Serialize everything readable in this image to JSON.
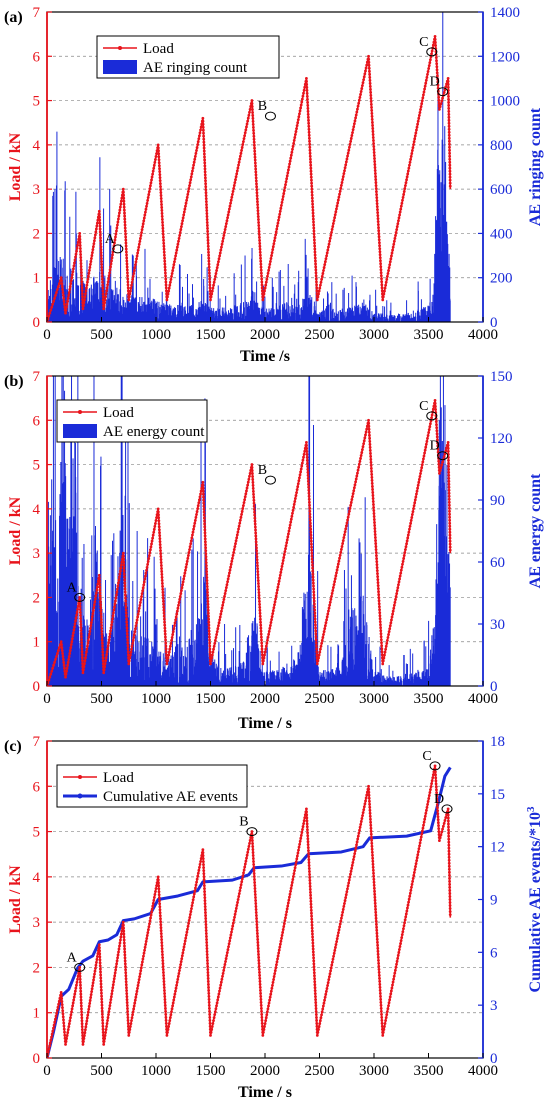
{
  "chart_data": [
    {
      "panel": "(a)",
      "type": "line+bar",
      "xlabel": "Time /s",
      "ylabel_left": "Load / kN",
      "ylabel_right": "AE ringing count",
      "xlim": [
        0,
        4000
      ],
      "ylim_left": [
        0,
        7
      ],
      "ylim_right": [
        0,
        1400
      ],
      "x_ticks": [
        "0",
        "500",
        "1000",
        "1500",
        "2000",
        "2500",
        "3000",
        "3500",
        "4000"
      ],
      "y_left_ticks": [
        "0",
        "1",
        "2",
        "3",
        "4",
        "5",
        "6",
        "7"
      ],
      "y_right_ticks": [
        "0",
        "200",
        "400",
        "600",
        "800",
        "1000",
        "1200",
        "1400"
      ],
      "legend": [
        "Load",
        "AE ringing count"
      ],
      "legend_position": "top-left",
      "grid": "horizontal dashed",
      "load_points": [
        [
          0,
          0
        ],
        [
          130,
          1.0
        ],
        [
          170,
          0.2
        ],
        [
          300,
          2.0
        ],
        [
          330,
          0.3
        ],
        [
          480,
          2.5
        ],
        [
          520,
          0.3
        ],
        [
          700,
          3.0
        ],
        [
          750,
          0.5
        ],
        [
          1020,
          4.0
        ],
        [
          1100,
          0.5
        ],
        [
          1430,
          4.6
        ],
        [
          1500,
          0.5
        ],
        [
          1880,
          5.0
        ],
        [
          1980,
          0.5
        ],
        [
          2380,
          5.5
        ],
        [
          2480,
          0.5
        ],
        [
          2950,
          6.0
        ],
        [
          3080,
          0.5
        ],
        [
          3560,
          6.45
        ],
        [
          3600,
          4.8
        ],
        [
          3680,
          5.5
        ],
        [
          3700,
          3.0
        ]
      ],
      "ae_profile": [
        [
          0,
          150
        ],
        [
          100,
          300
        ],
        [
          200,
          280
        ],
        [
          300,
          220
        ],
        [
          400,
          180
        ],
        [
          500,
          260
        ],
        [
          600,
          180
        ],
        [
          700,
          150
        ],
        [
          800,
          120
        ],
        [
          900,
          110
        ],
        [
          1000,
          110
        ],
        [
          1100,
          80
        ],
        [
          1200,
          90
        ],
        [
          1300,
          70
        ],
        [
          1400,
          110
        ],
        [
          1500,
          70
        ],
        [
          1600,
          70
        ],
        [
          1700,
          70
        ],
        [
          1800,
          90
        ],
        [
          1900,
          150
        ],
        [
          2000,
          60
        ],
        [
          2100,
          70
        ],
        [
          2200,
          90
        ],
        [
          2300,
          70
        ],
        [
          2400,
          150
        ],
        [
          2500,
          50
        ],
        [
          2600,
          60
        ],
        [
          2700,
          60
        ],
        [
          2800,
          70
        ],
        [
          2900,
          90
        ],
        [
          3000,
          50
        ],
        [
          3100,
          40
        ],
        [
          3200,
          40
        ],
        [
          3300,
          40
        ],
        [
          3400,
          60
        ],
        [
          3500,
          80
        ],
        [
          3550,
          150
        ],
        [
          3580,
          900
        ],
        [
          3600,
          1300
        ],
        [
          3620,
          1100
        ],
        [
          3650,
          900
        ],
        [
          3690,
          300
        ]
      ],
      "annotations": [
        {
          "label": "A",
          "x": 650,
          "y": 1.65
        },
        {
          "label": "B",
          "x": 2050,
          "y": 4.65
        },
        {
          "label": "C",
          "x": 3530,
          "y": 6.1
        },
        {
          "label": "D",
          "x": 3630,
          "y": 5.2
        }
      ]
    },
    {
      "panel": "(b)",
      "type": "line+bar",
      "xlabel": "Time / s",
      "ylabel_left": "Load / kN",
      "ylabel_right": "AE energy count",
      "xlim": [
        0,
        4000
      ],
      "ylim_left": [
        0,
        7
      ],
      "ylim_right": [
        0,
        150
      ],
      "x_ticks": [
        "0",
        "500",
        "1000",
        "1500",
        "2000",
        "2500",
        "3000",
        "3500",
        "4000"
      ],
      "y_left_ticks": [
        "0",
        "1",
        "2",
        "3",
        "4",
        "5",
        "6",
        "7"
      ],
      "y_right_ticks": [
        "0",
        "30",
        "60",
        "90",
        "120",
        "150"
      ],
      "legend": [
        "Load",
        "AE energy count"
      ],
      "legend_position": "top-left",
      "grid": "horizontal dashed",
      "load_points": [
        [
          0,
          0
        ],
        [
          130,
          1.0
        ],
        [
          170,
          0.2
        ],
        [
          300,
          2.0
        ],
        [
          330,
          0.3
        ],
        [
          480,
          2.5
        ],
        [
          520,
          0.3
        ],
        [
          700,
          3.0
        ],
        [
          750,
          0.5
        ],
        [
          1020,
          4.0
        ],
        [
          1100,
          0.5
        ],
        [
          1430,
          4.6
        ],
        [
          1500,
          0.5
        ],
        [
          1880,
          5.0
        ],
        [
          1980,
          0.5
        ],
        [
          2380,
          5.5
        ],
        [
          2480,
          0.5
        ],
        [
          2950,
          6.0
        ],
        [
          3080,
          0.5
        ],
        [
          3560,
          6.45
        ],
        [
          3600,
          4.8
        ],
        [
          3680,
          5.5
        ],
        [
          3700,
          3.0
        ]
      ],
      "ae_profile": [
        [
          0,
          40
        ],
        [
          60,
          150
        ],
        [
          100,
          60
        ],
        [
          150,
          150
        ],
        [
          200,
          70
        ],
        [
          250,
          150
        ],
        [
          300,
          30
        ],
        [
          350,
          40
        ],
        [
          400,
          30
        ],
        [
          450,
          100
        ],
        [
          500,
          40
        ],
        [
          600,
          30
        ],
        [
          700,
          100
        ],
        [
          750,
          30
        ],
        [
          800,
          25
        ],
        [
          900,
          25
        ],
        [
          1000,
          20
        ],
        [
          1100,
          15
        ],
        [
          1200,
          15
        ],
        [
          1300,
          25
        ],
        [
          1400,
          35
        ],
        [
          1450,
          60
        ],
        [
          1500,
          15
        ],
        [
          1600,
          10
        ],
        [
          1700,
          10
        ],
        [
          1800,
          15
        ],
        [
          1900,
          40
        ],
        [
          2000,
          8
        ],
        [
          2100,
          8
        ],
        [
          2200,
          10
        ],
        [
          2300,
          15
        ],
        [
          2400,
          70
        ],
        [
          2500,
          8
        ],
        [
          2600,
          8
        ],
        [
          2700,
          10
        ],
        [
          2800,
          40
        ],
        [
          2900,
          45
        ],
        [
          3000,
          8
        ],
        [
          3100,
          5
        ],
        [
          3200,
          5
        ],
        [
          3300,
          5
        ],
        [
          3400,
          8
        ],
        [
          3500,
          10
        ],
        [
          3560,
          40
        ],
        [
          3600,
          150
        ],
        [
          3620,
          150
        ],
        [
          3650,
          150
        ],
        [
          3690,
          60
        ]
      ],
      "annotations": [
        {
          "label": "A",
          "x": 300,
          "y": 2.0
        },
        {
          "label": "B",
          "x": 2050,
          "y": 4.65
        },
        {
          "label": "C",
          "x": 3530,
          "y": 6.1
        },
        {
          "label": "D",
          "x": 3630,
          "y": 5.2
        }
      ]
    },
    {
      "panel": "(c)",
      "type": "line",
      "xlabel": "Time / s",
      "ylabel_left": "Load / kN",
      "ylabel_right": "Cumulative AE events/*10",
      "ylabel_right_sup": "3",
      "xlim": [
        0,
        4000
      ],
      "ylim_left": [
        0,
        7
      ],
      "ylim_right": [
        0,
        18
      ],
      "x_ticks": [
        "0",
        "500",
        "1000",
        "1500",
        "2000",
        "2500",
        "3000",
        "3500",
        "4000"
      ],
      "y_left_ticks": [
        "0",
        "1",
        "2",
        "3",
        "4",
        "5",
        "6",
        "7"
      ],
      "y_right_ticks": [
        "0",
        "3",
        "6",
        "9",
        "12",
        "15",
        "18"
      ],
      "legend": [
        "Load",
        "Cumulative AE events"
      ],
      "legend_position": "top-left",
      "grid": "horizontal dashed",
      "load_points": [
        [
          0,
          0
        ],
        [
          130,
          1.45
        ],
        [
          170,
          0.3
        ],
        [
          300,
          2.0
        ],
        [
          330,
          0.3
        ],
        [
          480,
          2.5
        ],
        [
          520,
          0.3
        ],
        [
          700,
          3.0
        ],
        [
          750,
          0.5
        ],
        [
          1020,
          4.0
        ],
        [
          1100,
          0.5
        ],
        [
          1430,
          4.6
        ],
        [
          1500,
          0.5
        ],
        [
          1880,
          5.0
        ],
        [
          1980,
          0.5
        ],
        [
          2380,
          5.5
        ],
        [
          2480,
          0.5
        ],
        [
          2950,
          6.0
        ],
        [
          3080,
          0.5
        ],
        [
          3560,
          6.45
        ],
        [
          3600,
          4.8
        ],
        [
          3680,
          5.5
        ],
        [
          3700,
          3.1
        ]
      ],
      "cumulative_points": [
        [
          0,
          0
        ],
        [
          60,
          1.5
        ],
        [
          130,
          3.5
        ],
        [
          200,
          3.9
        ],
        [
          280,
          5.1
        ],
        [
          330,
          5.5
        ],
        [
          420,
          5.8
        ],
        [
          480,
          6.6
        ],
        [
          560,
          6.7
        ],
        [
          640,
          7.0
        ],
        [
          700,
          7.8
        ],
        [
          800,
          7.9
        ],
        [
          950,
          8.2
        ],
        [
          1020,
          9.0
        ],
        [
          1200,
          9.2
        ],
        [
          1380,
          9.5
        ],
        [
          1430,
          10.0
        ],
        [
          1700,
          10.1
        ],
        [
          1850,
          10.4
        ],
        [
          1900,
          10.8
        ],
        [
          2150,
          10.9
        ],
        [
          2330,
          11.1
        ],
        [
          2400,
          11.6
        ],
        [
          2700,
          11.7
        ],
        [
          2900,
          12.0
        ],
        [
          2960,
          12.5
        ],
        [
          3300,
          12.6
        ],
        [
          3520,
          12.9
        ],
        [
          3590,
          14.5
        ],
        [
          3650,
          16.0
        ],
        [
          3700,
          16.5
        ]
      ],
      "annotations": [
        {
          "label": "A",
          "x": 300,
          "y": 2.0
        },
        {
          "label": "B",
          "x": 1880,
          "y": 5.0
        },
        {
          "label": "C",
          "x": 3560,
          "y": 6.45
        },
        {
          "label": "D",
          "x": 3670,
          "y": 5.5
        }
      ]
    }
  ]
}
